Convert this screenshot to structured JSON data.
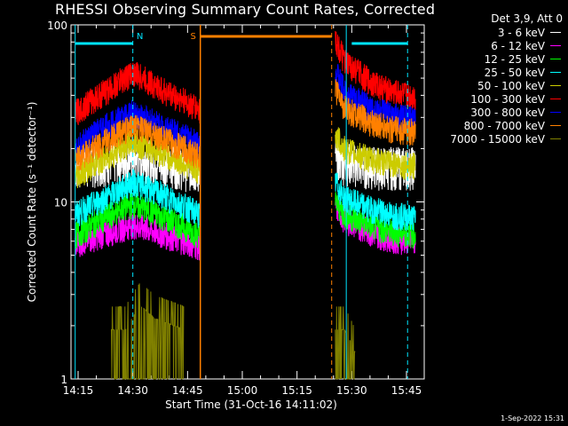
{
  "colors": {
    "background": "#000000",
    "foreground": "#ffffff",
    "marker_cyan": "#00e5ff",
    "marker_orange": "#ff8000"
  },
  "chart_data": {
    "type": "line",
    "title": "RHESSI Observing Summary Count Rates, Corrected",
    "xlabel": "Start Time (31-Oct-16 14:11:02)",
    "ylabel": "Corrected Count Rate (s⁻¹ detector⁻¹)",
    "ylog": true,
    "ylim": [
      1,
      100
    ],
    "xlim_minutes": [
      14.5,
      49.8
    ],
    "ytick_labels": [
      {
        "value": 1,
        "label": "1"
      },
      {
        "value": 10,
        "label": "10"
      },
      {
        "value": 100,
        "label": "100"
      }
    ],
    "xtick_labels": [
      {
        "minutes": 15,
        "label": "14:15"
      },
      {
        "minutes": 30,
        "label": "14:30"
      },
      {
        "minutes": 45,
        "label": "14:45"
      },
      {
        "minutes": 60,
        "label": "15:00"
      },
      {
        "minutes": 75,
        "label": "15:15"
      },
      {
        "minutes": 90,
        "label": "15:30"
      },
      {
        "minutes": 105,
        "label": "15:45"
      }
    ],
    "legend_header": "Det 3,9, Att 0",
    "legend_position": "outside-right",
    "series": [
      {
        "name": "3 - 6 keV",
        "color": "#ffffff",
        "segments": [
          {
            "x": [
              14.2,
              24,
              30,
              38,
              48.5
            ],
            "y": [
              16,
              17,
              18,
              17,
              15
            ]
          },
          {
            "x": [
              85.5,
              88,
              95,
              101,
              107.5
            ],
            "y": [
              18,
              17,
              16,
              16,
              16
            ]
          }
        ]
      },
      {
        "name": "6 - 12 keV",
        "color": "#ff00ff",
        "segments": [
          {
            "x": [
              14.2,
              24,
              30,
              38,
              48.5
            ],
            "y": [
              5.8,
              6.8,
              7.5,
              6.6,
              5.6
            ]
          },
          {
            "x": [
              85.5,
              88,
              95,
              101,
              107.5
            ],
            "y": [
              9.5,
              8,
              6.8,
              6.2,
              6
            ]
          }
        ]
      },
      {
        "name": "12 - 25 keV",
        "color": "#00ff00",
        "segments": [
          {
            "x": [
              14.2,
              24,
              30,
              38,
              48.5
            ],
            "y": [
              6.5,
              8.5,
              9.8,
              8.3,
              6.5
            ]
          },
          {
            "x": [
              85.5,
              88,
              95,
              101,
              107.5
            ],
            "y": [
              10,
              8.5,
              7.4,
              6.8,
              6.6
            ]
          }
        ]
      },
      {
        "name": "25 - 50 keV",
        "color": "#00ffff",
        "segments": [
          {
            "x": [
              14.2,
              24,
              30,
              38,
              48.5
            ],
            "y": [
              8.5,
              11,
              13,
              11,
              8.5
            ]
          },
          {
            "x": [
              85.5,
              88,
              95,
              101,
              107.5
            ],
            "y": [
              13,
              10.5,
              9.2,
              8.5,
              8.2
            ]
          }
        ]
      },
      {
        "name": "50 - 100 keV",
        "color": "#cccc00",
        "segments": [
          {
            "x": [
              14.2,
              24,
              30,
              38,
              48.5
            ],
            "y": [
              14,
              18.5,
              22,
              19,
              15
            ]
          },
          {
            "x": [
              85.5,
              88,
              95,
              101,
              107.5
            ],
            "y": [
              24,
              20,
              17.5,
              16.5,
              16
            ]
          }
        ]
      },
      {
        "name": "100 - 300 keV",
        "color": "#ff0000",
        "segments": [
          {
            "x": [
              14.2,
              24,
              30,
              38,
              48.5
            ],
            "y": [
              32,
              44,
              54,
              43,
              33
            ]
          },
          {
            "x": [
              85.5,
              88,
              95,
              101,
              107.5
            ],
            "y": [
              82,
              62,
              48,
              42,
              39
            ]
          }
        ]
      },
      {
        "name": "300 - 800 keV",
        "color": "#0000ff",
        "segments": [
          {
            "x": [
              14.2,
              24,
              30,
              38,
              48.5
            ],
            "y": [
              20,
              28,
              32,
              27,
              21
            ]
          },
          {
            "x": [
              85.5,
              88,
              95,
              101,
              107.5
            ],
            "y": [
              55,
              42,
              34,
              31,
              29
            ]
          }
        ]
      },
      {
        "name": "800 - 7000 keV",
        "color": "#ff8000",
        "segments": [
          {
            "x": [
              14.2,
              24,
              30,
              38,
              48.5
            ],
            "y": [
              17.5,
              23,
              27,
              23,
              18
            ]
          },
          {
            "x": [
              85.5,
              88,
              95,
              101,
              107.5
            ],
            "y": [
              44,
              34,
              28.5,
              26,
              25
            ]
          }
        ]
      },
      {
        "name": "7000 - 15000 keV",
        "color": "#808000",
        "segments": [
          {
            "x": [
              24,
              28,
              32,
              36,
              44
            ],
            "y": [
              1.9,
              1.9,
              2.6,
              2.2,
              1.9
            ]
          },
          {
            "x": [
              85.5,
              88,
              91
            ],
            "y": [
              1.9,
              1.9,
              1.4
            ]
          }
        ]
      }
    ],
    "annotations": [
      {
        "label": "N",
        "color": "#00e5ff",
        "x_minutes": 30
      },
      {
        "label": "S",
        "color": "#ff8000",
        "x_minutes": 48.5
      }
    ]
  },
  "date_stamp": "1-Sep-2022 15:31"
}
